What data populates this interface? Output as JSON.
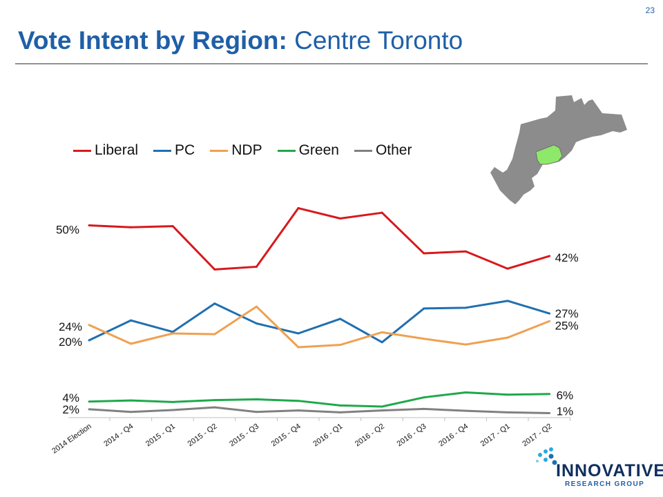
{
  "page_number": "23",
  "title": {
    "bold": "Vote Intent by Region:",
    "regular": " Centre Toronto"
  },
  "logo": {
    "name": "INNOVATIVE",
    "subtitle": "RESEARCH GROUP"
  },
  "map_icon": "toronto-region-map-icon",
  "colors": {
    "Liberal": "#d7191c",
    "PC": "#1f6fb0",
    "NDP": "#f0a050",
    "Green": "#1fa84b",
    "Other": "#808080",
    "map_fill": "#8c8c8c",
    "map_highlight": "#8ee86a",
    "title": "#1f5fa6"
  },
  "chart_data": {
    "type": "line",
    "title": "",
    "xlabel": "",
    "ylabel": "",
    "ylim": [
      0,
      60
    ],
    "grid": false,
    "legend_position": "top-left",
    "categories": [
      "2014 Election",
      "2014 - Q4",
      "2015 - Q1",
      "2015 - Q2",
      "2015 - Q3",
      "2015 - Q4",
      "2016 - Q1",
      "2016 - Q2",
      "2016 - Q3",
      "2016 - Q4",
      "2017 - Q1",
      "2017 - Q2"
    ],
    "series": [
      {
        "name": "Liberal",
        "values": [
          50,
          49.5,
          49.8,
          38.5,
          39.2,
          54.5,
          51.8,
          53.3,
          42.7,
          43.2,
          38.7,
          42
        ],
        "start_label": "50%",
        "end_label": "42%"
      },
      {
        "name": "PC",
        "values": [
          20,
          25.2,
          22.2,
          29.6,
          24.4,
          21.8,
          25.6,
          19.5,
          28.3,
          28.5,
          30.3,
          27
        ],
        "start_label": "20%",
        "end_label": "27%"
      },
      {
        "name": "NDP",
        "values": [
          24,
          19.1,
          21.8,
          21.6,
          28.8,
          18.2,
          18.8,
          22.1,
          20.4,
          18.9,
          20.7,
          25
        ],
        "start_label": "24%",
        "end_label": "25%"
      },
      {
        "name": "Green",
        "values": [
          4,
          4.3,
          3.9,
          4.4,
          4.6,
          4.2,
          3.0,
          2.7,
          5.1,
          6.4,
          5.8,
          6
        ],
        "start_label": "4%",
        "end_label": "6%"
      },
      {
        "name": "Other",
        "values": [
          2,
          1.3,
          1.8,
          2.5,
          1.3,
          1.7,
          1.2,
          1.7,
          2.1,
          1.6,
          1.2,
          1
        ],
        "start_label": "2%",
        "end_label": "1%"
      }
    ]
  }
}
